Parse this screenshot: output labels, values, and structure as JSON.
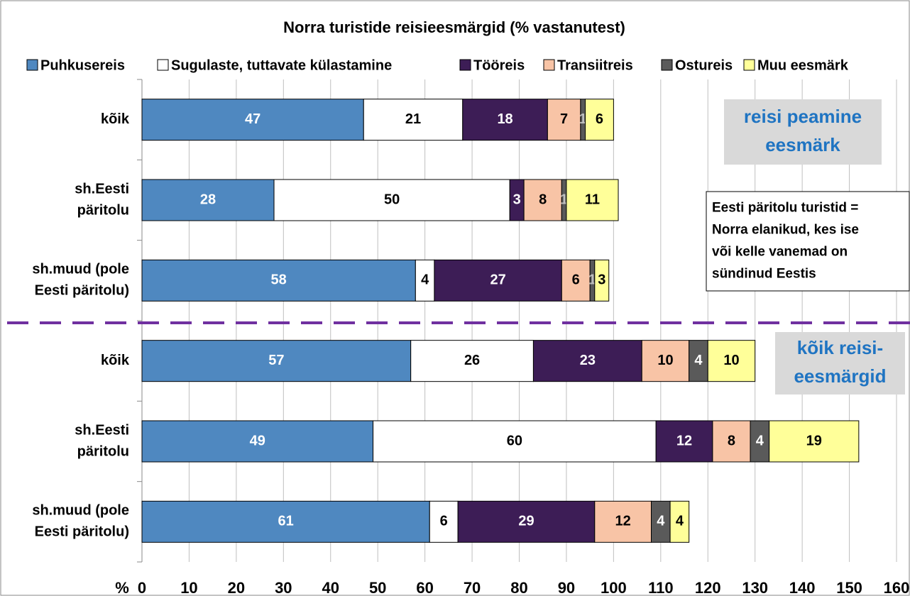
{
  "chart_data": {
    "type": "stacked_bar_horizontal",
    "title": "Norra turistide reisieesmärgid (% vastanutest)",
    "x_label": "%",
    "categories": [
      [
        "kõik"
      ],
      [
        "sh.Eesti",
        "päritolu"
      ],
      [
        "sh.muud (pole",
        "Eesti päritolu)"
      ],
      [
        "kõik"
      ],
      [
        "sh.Eesti",
        "päritolu"
      ],
      [
        "sh.muud (pole",
        "Eesti päritolu)"
      ]
    ],
    "series": [
      {
        "name": "Puhkusereis",
        "color": "#4f88c0",
        "values": [
          47,
          28,
          58,
          57,
          49,
          61
        ]
      },
      {
        "name": "Sugulaste, tuttavate külastamine",
        "color": "#ffffff",
        "values": [
          21,
          50,
          4,
          26,
          60,
          6
        ]
      },
      {
        "name": "Tööreis",
        "color": "#3d1d56",
        "values": [
          18,
          3,
          27,
          23,
          12,
          29
        ]
      },
      {
        "name": "Transiitreis",
        "color": "#f8c4a6",
        "values": [
          7,
          8,
          6,
          10,
          8,
          12
        ]
      },
      {
        "name": "Ostureis",
        "color": "#5a5a5a",
        "values": [
          1,
          1,
          1,
          4,
          4,
          4
        ]
      },
      {
        "name": "Muu eesmärk",
        "color": "#ffff99",
        "values": [
          6,
          11,
          3,
          10,
          19,
          4
        ]
      }
    ],
    "xlim": [
      0,
      160
    ],
    "xticks": [
      0,
      10,
      20,
      30,
      40,
      50,
      60,
      70,
      80,
      90,
      100,
      110,
      120,
      130,
      140,
      150,
      160
    ],
    "grid": true,
    "legend": "top",
    "annotations": [
      [
        "reisi peamine",
        "eesmärk"
      ],
      [
        "kõik reisi-",
        "eesmärgid"
      ],
      [
        "Eesti päritolu turistid =",
        "Norra elanikud, kes ise",
        "või kelle vanemad on",
        "sündinud Eestis"
      ]
    ]
  }
}
